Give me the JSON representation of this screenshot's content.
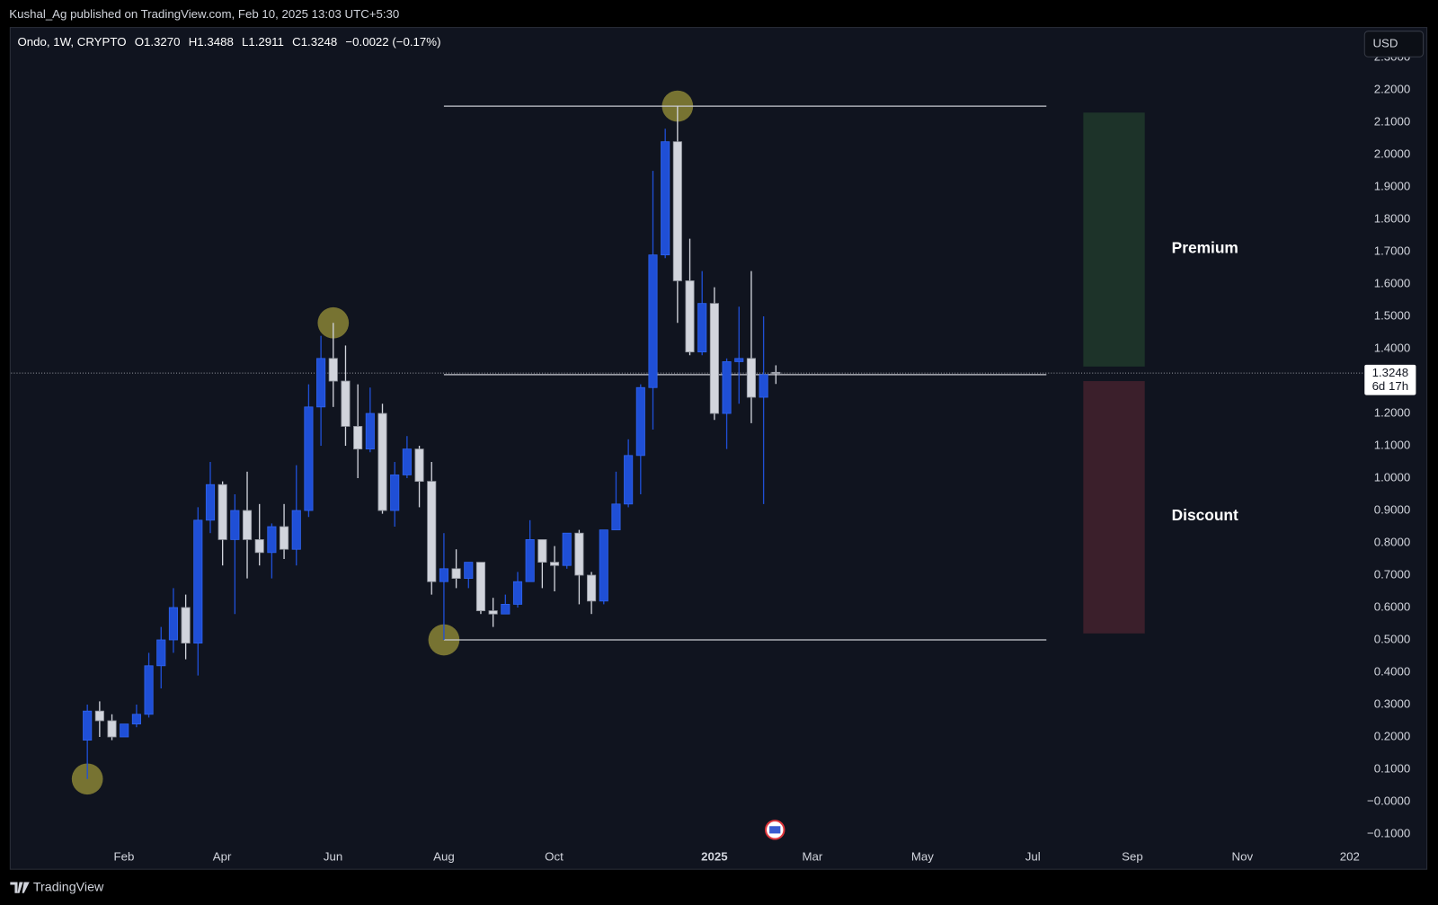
{
  "page": {
    "byline": "Kushal_Ag published on TradingView.com, Feb 10, 2025 13:03 UTC+5:30",
    "brand": "TradingView",
    "currency": "USD"
  },
  "chart_data": {
    "type": "candlestick",
    "legend": {
      "symbol": "Ondo, 1W, CRYPTO",
      "fields": [
        {
          "key": "O",
          "value": "1.3270"
        },
        {
          "key": "H",
          "value": "1.3488"
        },
        {
          "key": "L",
          "value": "1.2911"
        },
        {
          "key": "C",
          "value": "1.3248"
        }
      ],
      "change": "−0.0022 (−0.17%)"
    },
    "categories": [
      null,
      null,
      null,
      null,
      null,
      null,
      null,
      null,
      null,
      null,
      null,
      null,
      null,
      null,
      null,
      null,
      null,
      null,
      null,
      null,
      null,
      null,
      null,
      null,
      null,
      null,
      null,
      null,
      null,
      null,
      null,
      null,
      null,
      null,
      null,
      null,
      null,
      null,
      null,
      null,
      null,
      null,
      null,
      null,
      null,
      null,
      null,
      null,
      null,
      null,
      null,
      null,
      null,
      null,
      null,
      null,
      null
    ],
    "open": [
      0.19,
      0.28,
      0.25,
      0.2,
      0.24,
      0.27,
      0.42,
      0.5,
      0.6,
      0.49,
      0.87,
      0.98,
      0.81,
      0.9,
      0.81,
      0.77,
      0.85,
      0.78,
      0.9,
      1.22,
      1.37,
      1.3,
      1.16,
      1.09,
      1.2,
      0.9,
      1.01,
      1.09,
      0.99,
      0.68,
      0.72,
      0.69,
      0.74,
      0.59,
      0.58,
      0.61,
      0.68,
      0.81,
      0.74,
      0.73,
      0.83,
      0.7,
      0.62,
      0.84,
      0.92,
      1.07,
      1.28,
      1.69,
      2.04,
      1.61,
      1.39,
      1.54,
      1.2,
      1.36,
      1.37,
      1.25,
      1.327
    ],
    "high": [
      0.3,
      0.31,
      0.27,
      0.24,
      0.3,
      0.46,
      0.54,
      0.66,
      0.64,
      0.91,
      1.05,
      0.99,
      0.95,
      1.02,
      0.92,
      0.86,
      0.92,
      1.04,
      1.29,
      1.44,
      1.48,
      1.41,
      1.29,
      1.28,
      1.23,
      1.05,
      1.13,
      1.1,
      1.05,
      0.83,
      0.78,
      0.74,
      0.74,
      0.63,
      0.64,
      0.71,
      0.87,
      0.81,
      0.79,
      0.83,
      0.84,
      0.71,
      0.84,
      1.02,
      1.12,
      1.29,
      1.95,
      2.08,
      2.15,
      1.74,
      1.64,
      1.59,
      1.37,
      1.53,
      1.64,
      1.5,
      1.3488
    ],
    "low": [
      0.07,
      0.2,
      0.19,
      0.2,
      0.23,
      0.26,
      0.35,
      0.46,
      0.44,
      0.39,
      0.83,
      0.73,
      0.58,
      0.69,
      0.73,
      0.69,
      0.75,
      0.73,
      0.88,
      1.1,
      1.22,
      1.1,
      1.0,
      1.08,
      0.89,
      0.85,
      1.0,
      0.91,
      0.64,
      0.5,
      0.66,
      0.66,
      0.58,
      0.54,
      0.58,
      0.6,
      0.68,
      0.66,
      0.65,
      0.72,
      0.61,
      0.58,
      0.61,
      0.84,
      0.91,
      0.95,
      1.15,
      1.68,
      1.48,
      1.38,
      1.38,
      1.18,
      1.09,
      1.23,
      1.17,
      0.92,
      1.2911
    ],
    "close": [
      0.28,
      0.25,
      0.2,
      0.24,
      0.27,
      0.42,
      0.5,
      0.6,
      0.49,
      0.87,
      0.98,
      0.81,
      0.9,
      0.81,
      0.77,
      0.85,
      0.78,
      0.9,
      1.22,
      1.37,
      1.3,
      1.16,
      1.09,
      1.2,
      0.9,
      1.01,
      1.09,
      0.99,
      0.68,
      0.72,
      0.69,
      0.74,
      0.59,
      0.58,
      0.61,
      0.68,
      0.81,
      0.74,
      0.73,
      0.83,
      0.7,
      0.62,
      0.84,
      0.92,
      1.07,
      1.28,
      1.69,
      2.04,
      1.61,
      1.39,
      1.54,
      1.2,
      1.36,
      1.37,
      1.25,
      1.32,
      1.3248
    ],
    "up_color": "#1f4fd6",
    "down_color": "#d1d4dc",
    "xlim": [
      -6.2,
      103.8
    ],
    "xticks": [
      {
        "value": 2.98,
        "label": "Feb"
      },
      {
        "value": 10.96,
        "label": "Apr"
      },
      {
        "value": 19.98,
        "label": "Jun"
      },
      {
        "value": 29.0,
        "label": "Aug"
      },
      {
        "value": 37.96,
        "label": "Oct"
      },
      {
        "value": 51.0,
        "label": "2025"
      },
      {
        "value": 58.97,
        "label": "Mar"
      },
      {
        "value": 67.92,
        "label": "May"
      },
      {
        "value": 76.9,
        "label": "Jul"
      },
      {
        "value": 84.99,
        "label": "Sep"
      },
      {
        "value": 93.94,
        "label": "Nov"
      },
      {
        "value": 102.67,
        "label": "202"
      }
    ],
    "ylim": [
      -0.209,
      2.393
    ],
    "yticks": [
      {
        "value": 2.3,
        "label": "2.3000"
      },
      {
        "value": 2.2,
        "label": "2.2000"
      },
      {
        "value": 2.1,
        "label": "2.1000"
      },
      {
        "value": 2.0,
        "label": "2.0000"
      },
      {
        "value": 1.9,
        "label": "1.9000"
      },
      {
        "value": 1.8,
        "label": "1.8000"
      },
      {
        "value": 1.7,
        "label": "1.7000"
      },
      {
        "value": 1.6,
        "label": "1.6000"
      },
      {
        "value": 1.5,
        "label": "1.5000"
      },
      {
        "value": 1.4,
        "label": "1.4000"
      },
      {
        "value": 1.2,
        "label": "1.2000"
      },
      {
        "value": 1.1,
        "label": "1.1000"
      },
      {
        "value": 1.0,
        "label": "1.0000"
      },
      {
        "value": 0.9,
        "label": "0.9000"
      },
      {
        "value": 0.8,
        "label": "0.8000"
      },
      {
        "value": 0.7,
        "label": "0.7000"
      },
      {
        "value": 0.6,
        "label": "0.6000"
      },
      {
        "value": 0.5,
        "label": "0.5000"
      },
      {
        "value": 0.4,
        "label": "0.4000"
      },
      {
        "value": 0.3,
        "label": "0.3000"
      },
      {
        "value": 0.2,
        "label": "0.2000"
      },
      {
        "value": 0.1,
        "label": "0.1000"
      },
      {
        "value": 0,
        "label": "−0.0000"
      },
      {
        "value": -0.1,
        "label": "−0.1000"
      }
    ],
    "price_marker": {
      "value": 1.3248,
      "label": "1.3248",
      "countdown": "6d 17h"
    },
    "levels": {
      "start": 29,
      "end": 78,
      "values": [
        2.15,
        1.32,
        0.5
      ]
    },
    "highlights": [
      {
        "x": 0,
        "y": 0.07
      },
      {
        "x": 20,
        "y": 1.48
      },
      {
        "x": 29,
        "y": 0.5
      },
      {
        "x": 48,
        "y": 2.15
      }
    ],
    "zones": [
      {
        "label": "Premium",
        "start": 81,
        "end": 86,
        "top": 2.13,
        "bottom": 1.345,
        "color": "#1d3329"
      },
      {
        "label": "Discount",
        "start": 81,
        "end": 86,
        "top": 1.3,
        "bottom": 0.52,
        "color": "#3b1f2b"
      }
    ]
  }
}
